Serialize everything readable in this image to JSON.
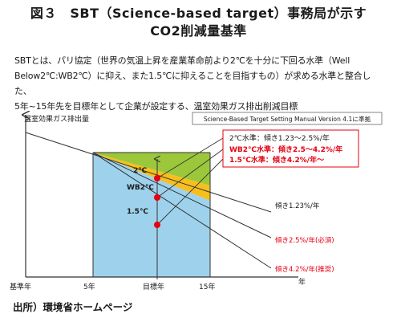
{
  "title": {
    "line1": "図３　SBT（Science-based target）事務局が示す",
    "line2": "CO2削減量基準"
  },
  "intro": {
    "line1": "SBTとは、パリ協定（世界の気温上昇を産業革命前より2℃を十分に下回る水準（Well",
    "line2": "Below2℃:WB2℃）に抑え、また1.5℃に抑えることを目指すもの）が求める水準と整合した、",
    "line3": "5年~15年先を目標年として企業が設定する、温室効果ガス排出削減目標"
  },
  "diagram": {
    "y_axis_label": "温室効果ガス排出量",
    "source_box": "Science-Based Target Setting Manual Version 4.1に準拠",
    "x_axis": {
      "labels": [
        "基準年",
        "5年",
        "目標年",
        "15年"
      ],
      "unit": "年"
    },
    "zone_labels": {
      "two_c": "2℃",
      "wb2c": "WB2℃",
      "one_five_c": "1.5℃"
    },
    "callout": {
      "line1": "2℃水準：傾き1.23～2.5%/年",
      "line2": "WB2℃水準：傾き2.5～4.2%/年",
      "line3": "1.5℃水準：傾き4.2%/年～"
    },
    "slope_labels": {
      "slope_1": "傾き1.23%/年",
      "slope_2": "傾き2.5%/年(必須)",
      "slope_3": "傾き4.2%/年(推奨)"
    },
    "colors": {
      "two_c_zone": "#9bc83b",
      "wb2c_zone": "#f7bf1e",
      "one_five_c_zone": "#9ed2ec",
      "marker": "#e60012",
      "red_text": "#e60012",
      "axis": "#333333"
    }
  },
  "source": "出所）環境省ホームページ"
}
